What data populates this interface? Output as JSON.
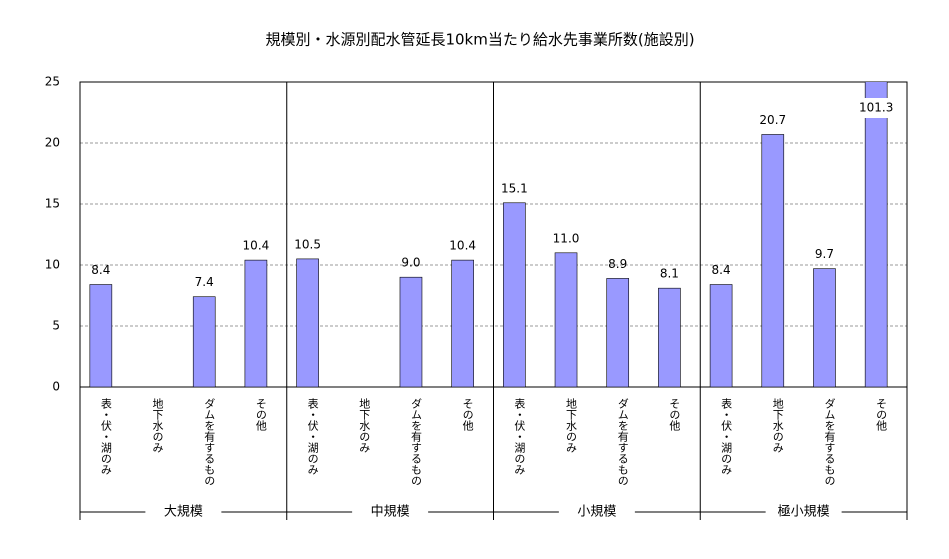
{
  "chart_data": {
    "type": "bar",
    "title": "規模別・水源別配水管延長10km当たり給水先事業所数(施設別)",
    "groups": [
      "大規模",
      "中規模",
      "小規模",
      "極小規模"
    ],
    "categories": [
      "表・伏・湖のみ",
      "地下水のみ",
      "ダムを有するもの",
      "その他",
      "表・伏・湖のみ",
      "地下水のみ",
      "ダムを有するもの",
      "その他",
      "表・伏・湖のみ",
      "地下水のみ",
      "ダムを有するもの",
      "その他",
      "表・伏・湖のみ",
      "地下水のみ",
      "ダムを有するもの",
      "その他"
    ],
    "values": [
      8.4,
      null,
      7.4,
      10.4,
      10.5,
      null,
      9.0,
      10.4,
      15.1,
      11.0,
      8.9,
      8.1,
      8.4,
      20.7,
      9.7,
      101.3
    ],
    "value_labels": [
      "8.4",
      null,
      "7.4",
      "10.4",
      "10.5",
      null,
      "9.0",
      "10.4",
      "15.1",
      "11.0",
      "8.9",
      "8.1",
      "8.4",
      "20.7",
      "9.7",
      "101.3"
    ],
    "color": "#9999ff",
    "ylim": [
      0,
      25
    ],
    "yticks": [
      0,
      5,
      10,
      15,
      20,
      25
    ],
    "grid": true
  }
}
